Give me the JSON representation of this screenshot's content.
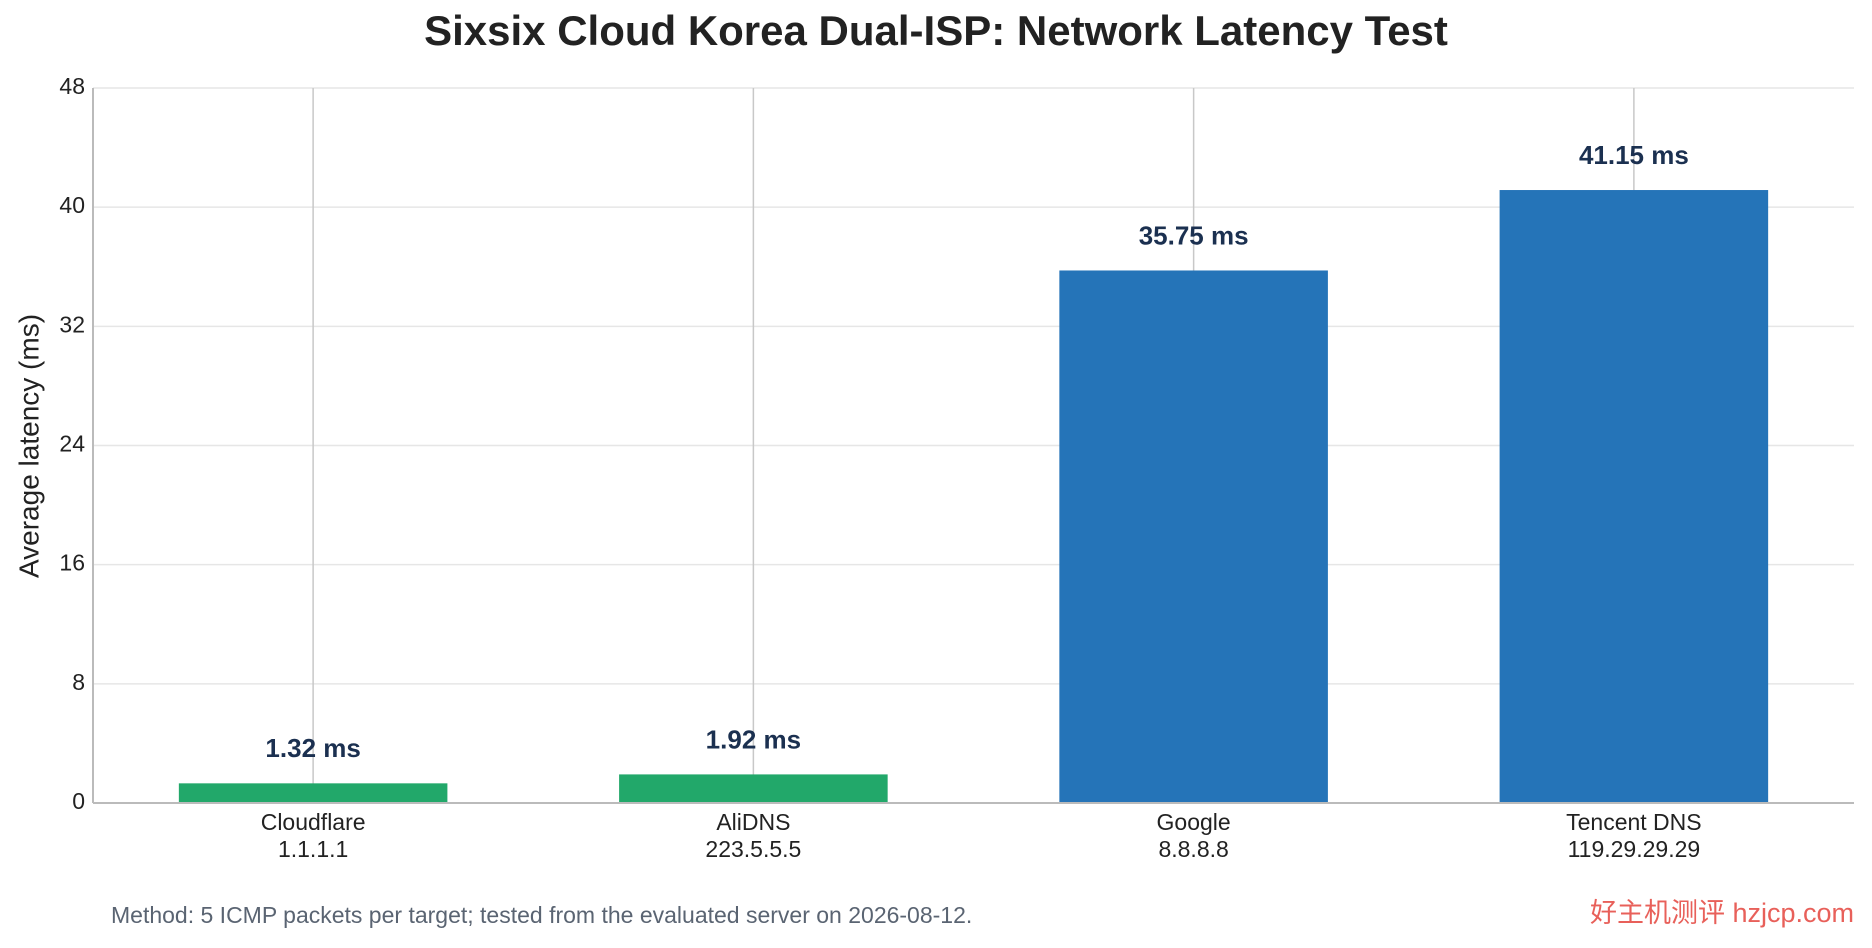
{
  "chart_data": {
    "type": "bar",
    "title": "Sixsix Cloud Korea Dual-ISP: Network Latency Test",
    "y_label": "Average latency (ms)",
    "categories": [
      "Cloudflare",
      "AliDNS",
      "Google",
      "Tencent DNS"
    ],
    "category_sublabels": [
      "1.1.1.1",
      "223.5.5.5",
      "8.8.8.8",
      "119.29.29.29"
    ],
    "values": [
      1.32,
      1.92,
      35.75,
      41.15
    ],
    "value_labels": [
      "1.32 ms",
      "1.92 ms",
      "35.75 ms",
      "41.15 ms"
    ],
    "colors": [
      "#22a86a",
      "#22a86a",
      "#2574b8",
      "#2574b8"
    ],
    "ylim": [
      0,
      48
    ],
    "yticks": [
      0,
      8,
      16,
      24,
      32,
      40,
      48
    ],
    "grid": true,
    "footnote": "Method: 5 ICMP packets per target; tested from the evaluated server on 2026-08-12.",
    "watermark": "好主机测评 hzjcp.com"
  }
}
